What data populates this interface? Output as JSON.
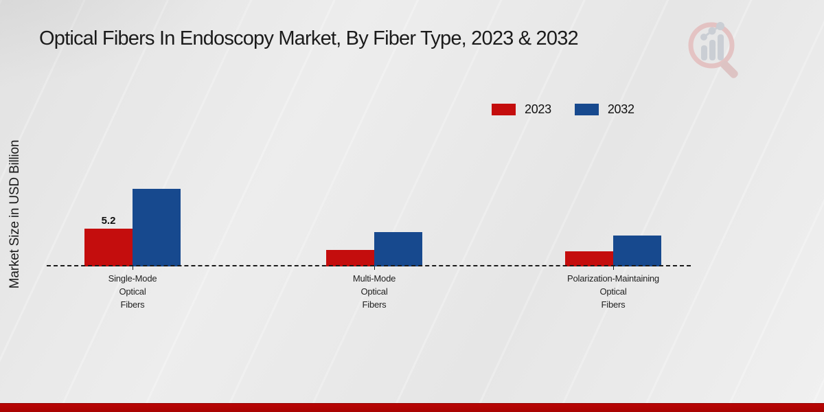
{
  "page": {
    "title": "Optical Fibers In Endoscopy Market, By Fiber Type, 2023 & 2032",
    "logo_icon": "magnifier-bar-chart-watermark-icon",
    "footer_stripe_color": "#b90404"
  },
  "chart_data": {
    "type": "bar",
    "title": "Optical Fibers In Endoscopy Market, By Fiber Type, 2023 & 2032",
    "xlabel": "",
    "ylabel": "Market Size in USD Billion",
    "categories": [
      "Single-Mode Optical Fibers",
      "Multi-Mode Optical Fibers",
      "Polarization-Maintaining Optical Fibers"
    ],
    "category_label_lines": [
      [
        "Single-Mode",
        "Optical",
        "Fibers"
      ],
      [
        "Multi-Mode",
        "Optical",
        "Fibers"
      ],
      [
        "Polarization-Maintaining",
        "Optical",
        "Fibers"
      ]
    ],
    "series": [
      {
        "name": "2023",
        "color": "#c40d0d",
        "values": [
          5.2,
          2.3,
          2.1
        ]
      },
      {
        "name": "2032",
        "color": "#17498e",
        "values": [
          10.7,
          4.7,
          4.3
        ]
      }
    ],
    "data_labels": [
      {
        "series_index": 0,
        "category_index": 0,
        "text": "5.2"
      }
    ],
    "ylim": [
      0,
      12
    ],
    "grid": false,
    "axis_style": "dashed-baseline-only",
    "legend_position": "top-right"
  }
}
